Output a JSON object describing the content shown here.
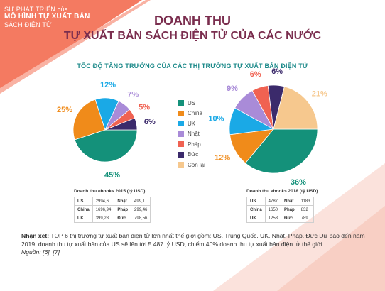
{
  "banner": {
    "line1": "SỰ PHÁT TRIỂN của",
    "line2": "MÔ HÌNH TỰ XUẤT BẢN",
    "line3": "SÁCH ĐIỆN TỬ"
  },
  "title": {
    "line1": "DOANH THU",
    "line2": "TỰ XUẤT BẢN SÁCH ĐIỆN TỬ CỦA CÁC NƯỚC"
  },
  "colors": {
    "US": "#14917a",
    "China": "#f08b1a",
    "UK": "#1aa9e6",
    "Nhật": "#a98bd8",
    "Pháp": "#f06252",
    "Đức": "#3b2a6b",
    "Còn lại": "#f6c88e",
    "banner": "#f47a61",
    "title": "#7a2d4e",
    "subtitle": "#1d8a8a"
  },
  "chart_data": {
    "type": "pie",
    "title": "TỐC ĐỘ TĂNG TRƯỞNG CỦA CÁC THỊ TRƯỜNG TỰ XUẤT BẢN ĐIỆN TỬ",
    "legend_position": "center",
    "categories": [
      "US",
      "China",
      "UK",
      "Nhật",
      "Pháp",
      "Đức",
      "Còn lại"
    ],
    "series": [
      {
        "values": [
          45,
          25,
          12,
          7,
          5,
          6,
          0
        ],
        "labels": [
          "45%",
          "25%",
          "12%",
          "7%",
          "5%",
          "6%",
          ""
        ]
      },
      {
        "values": [
          36,
          12,
          10,
          9,
          6,
          6,
          21
        ],
        "labels": [
          "36%",
          "12%",
          "10%",
          "9%",
          "6%",
          "6%",
          "21%"
        ]
      }
    ]
  },
  "tables": [
    {
      "title": "Doanh thu ebooks 2015 (tỷ USD)",
      "rows": [
        [
          "US",
          "2994,6",
          "Nhật",
          "499,1"
        ],
        [
          "China",
          "1696,94",
          "Pháp",
          "299,46"
        ],
        [
          "UK",
          "399,28",
          "Đức",
          "798,56"
        ]
      ]
    },
    {
      "title": "Doanh thu ebooks 2018 (tỷ USD)",
      "rows": [
        [
          "US",
          "4787",
          "Nhật",
          "1183"
        ],
        [
          "China",
          "1650",
          "Pháp",
          "832"
        ],
        [
          "UK",
          "1258",
          "Đức",
          "789"
        ]
      ]
    }
  ],
  "note": {
    "label": "Nhận xét:",
    "text": " TOP 6 thị trường tự xuất bản điện tử lớn nhất thế giới gồm: US, Trung Quốc, UK, Nhật, Pháp, Đức Dự báo đến năm 2019, doanh thu tự xuất bản của US sẽ lên tới 5.487 tỷ USD, chiếm 40% doanh thu tự xuất bản điện tử thế giới",
    "source": "Nguồn: [6], [7]"
  }
}
